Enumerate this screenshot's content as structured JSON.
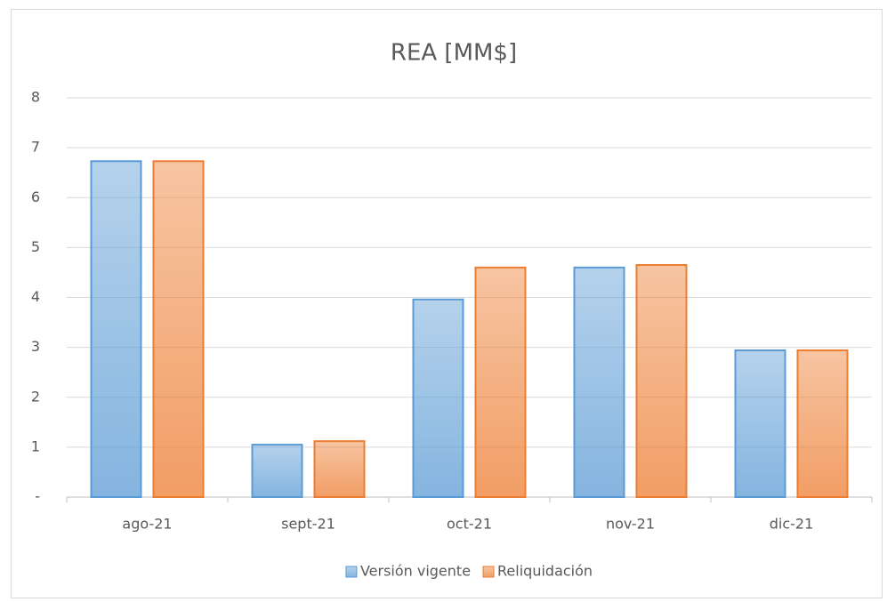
{
  "chart_data": {
    "type": "bar",
    "title": "REA [MM$]",
    "categories": [
      "ago-21",
      "sept-21",
      "oct-21",
      "nov-21",
      "dic-21"
    ],
    "series": [
      {
        "name": "Versión vigente",
        "color": "#5b9bd5",
        "values": [
          6.73,
          1.05,
          3.96,
          4.6,
          2.94
        ]
      },
      {
        "name": "Reliquidación",
        "color": "#ed7d31",
        "values": [
          6.73,
          1.12,
          4.6,
          4.65,
          2.94
        ]
      }
    ],
    "ylim": [
      0,
      8
    ],
    "yticks": [
      {
        "value": 0,
        "label": "-"
      },
      1,
      2,
      3,
      4,
      5,
      6,
      7,
      8
    ],
    "grid": true,
    "legend": "bottom"
  }
}
